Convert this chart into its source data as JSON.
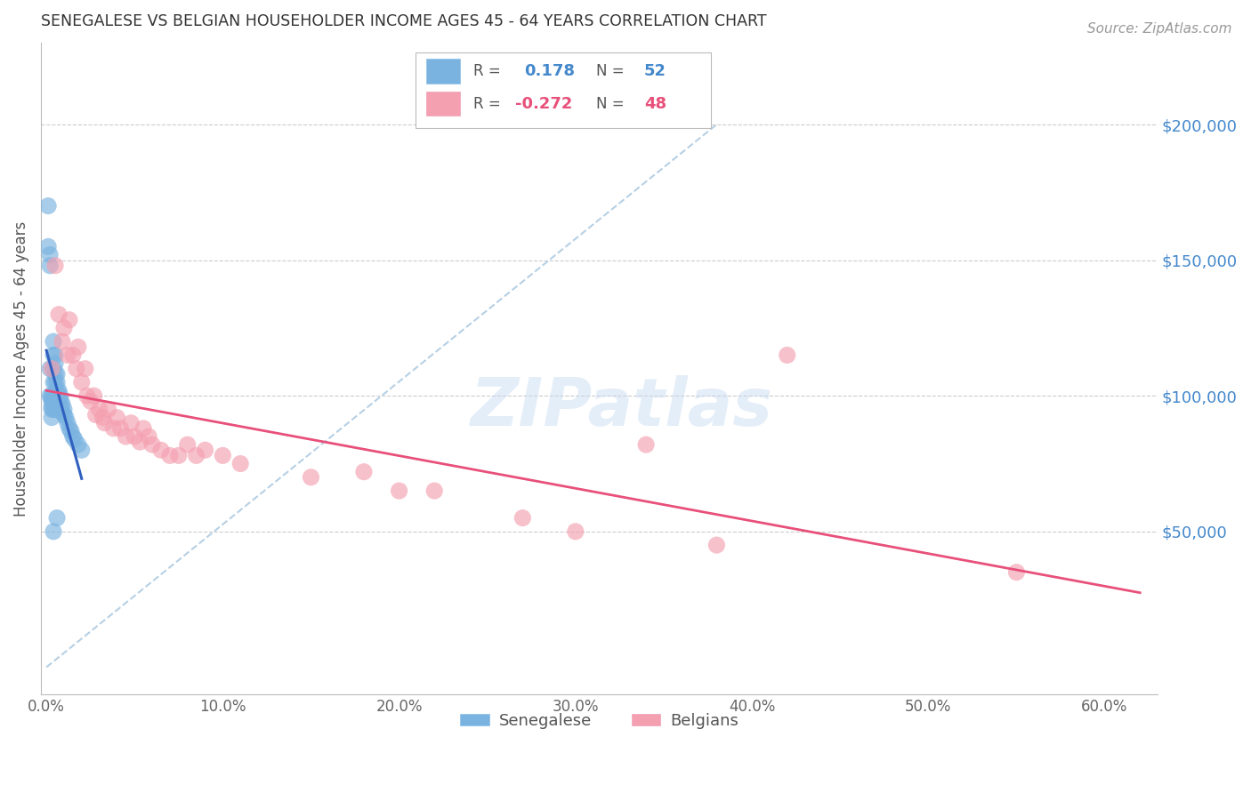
{
  "title": "SENEGALESE VS BELGIAN HOUSEHOLDER INCOME AGES 45 - 64 YEARS CORRELATION CHART",
  "source": "Source: ZipAtlas.com",
  "ylabel": "Householder Income Ages 45 - 64 years",
  "ylim": [
    -10000,
    230000
  ],
  "xlim": [
    -0.003,
    0.63
  ],
  "r_senegalese": 0.178,
  "n_senegalese": 52,
  "r_belgians": -0.272,
  "n_belgians": 48,
  "color_senegalese": "#7ab3e0",
  "color_belgians": "#f4a0b0",
  "color_line_senegalese": "#3060c0",
  "color_line_belgians": "#e8507a",
  "color_diag": "#aac8e0",
  "sen_x": [
    0.001,
    0.001,
    0.002,
    0.002,
    0.002,
    0.002,
    0.003,
    0.003,
    0.003,
    0.003,
    0.003,
    0.003,
    0.004,
    0.004,
    0.004,
    0.004,
    0.004,
    0.004,
    0.005,
    0.005,
    0.005,
    0.005,
    0.005,
    0.005,
    0.005,
    0.006,
    0.006,
    0.006,
    0.006,
    0.006,
    0.006,
    0.007,
    0.007,
    0.007,
    0.007,
    0.008,
    0.008,
    0.008,
    0.009,
    0.009,
    0.01,
    0.01,
    0.011,
    0.012,
    0.013,
    0.014,
    0.015,
    0.016,
    0.018,
    0.02,
    0.004,
    0.006
  ],
  "sen_y": [
    170000,
    155000,
    152000,
    148000,
    110000,
    100000,
    100000,
    99000,
    98000,
    96000,
    95000,
    92000,
    120000,
    115000,
    110000,
    105000,
    100000,
    95000,
    115000,
    112000,
    108000,
    105000,
    100000,
    98000,
    95000,
    108000,
    105000,
    102000,
    100000,
    98000,
    95000,
    102000,
    100000,
    98000,
    96000,
    100000,
    98000,
    95000,
    97000,
    94000,
    95000,
    93000,
    92000,
    90000,
    88000,
    87000,
    85000,
    84000,
    82000,
    80000,
    50000,
    55000
  ],
  "bel_x": [
    0.003,
    0.005,
    0.007,
    0.009,
    0.01,
    0.012,
    0.013,
    0.015,
    0.017,
    0.018,
    0.02,
    0.022,
    0.023,
    0.025,
    0.027,
    0.028,
    0.03,
    0.032,
    0.033,
    0.035,
    0.038,
    0.04,
    0.042,
    0.045,
    0.048,
    0.05,
    0.053,
    0.055,
    0.058,
    0.06,
    0.065,
    0.07,
    0.075,
    0.08,
    0.085,
    0.09,
    0.1,
    0.11,
    0.15,
    0.18,
    0.2,
    0.22,
    0.27,
    0.3,
    0.34,
    0.38,
    0.42,
    0.55
  ],
  "bel_y": [
    110000,
    148000,
    130000,
    120000,
    125000,
    115000,
    128000,
    115000,
    110000,
    118000,
    105000,
    110000,
    100000,
    98000,
    100000,
    93000,
    95000,
    92000,
    90000,
    95000,
    88000,
    92000,
    88000,
    85000,
    90000,
    85000,
    83000,
    88000,
    85000,
    82000,
    80000,
    78000,
    78000,
    82000,
    78000,
    80000,
    78000,
    75000,
    70000,
    72000,
    65000,
    65000,
    55000,
    50000,
    82000,
    45000,
    115000,
    35000
  ]
}
